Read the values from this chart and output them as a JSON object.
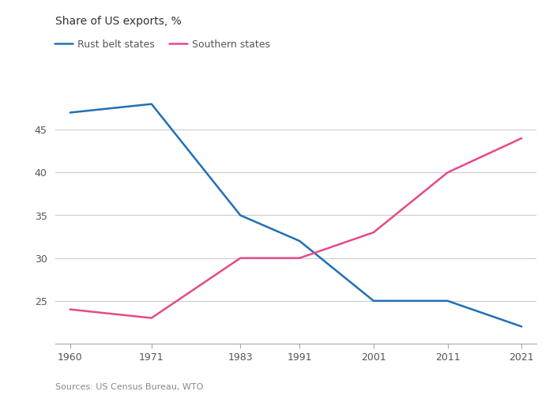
{
  "rust_belt": {
    "x": [
      1960,
      1971,
      1983,
      1991,
      2001,
      2011,
      2021
    ],
    "y": [
      47,
      48,
      35,
      32,
      25,
      25,
      22
    ],
    "color": "#2070b4",
    "label": "Rust belt states",
    "linewidth": 1.8
  },
  "southern": {
    "x": [
      1960,
      1971,
      1983,
      1991,
      2001,
      2011,
      2021
    ],
    "y": [
      24,
      23,
      30,
      30,
      33,
      40,
      44
    ],
    "color": "#e6498a",
    "label": "Southern states",
    "linewidth": 1.8
  },
  "title": "Share of US exports, %",
  "source": "Sources: US Census Bureau, WTO",
  "ylim": [
    20,
    50
  ],
  "yticks": [
    25,
    30,
    35,
    40,
    45
  ],
  "xticks": [
    1960,
    1971,
    1983,
    1991,
    2001,
    2011,
    2021
  ],
  "background_color": "#ffffff",
  "title_color": "#333333",
  "tick_color": "#555555",
  "grid_color": "#cccccc",
  "source_color": "#888888",
  "spine_color": "#aaaaaa"
}
